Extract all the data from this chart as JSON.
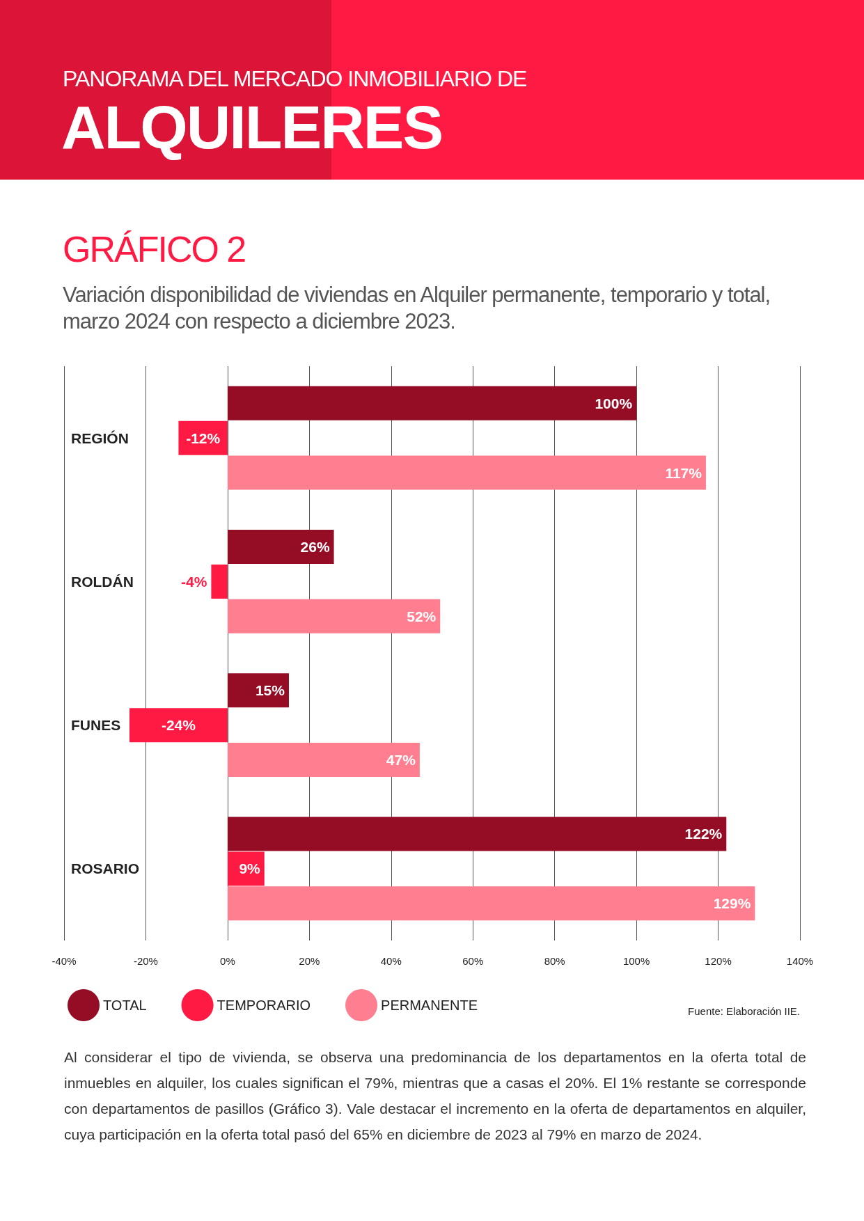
{
  "chart_data": {
    "type": "bar",
    "orientation": "horizontal",
    "title": "PANORAMA DEL MERCADO INMOBILIARIO DE\nALQUILERES",
    "subtitle": "GRÁFICO 2\nVariación disponibilidad de viviendas en Alquiler permanente, temporario y total, marzo 2024 con respecto a diciembre 2023.",
    "categories": [
      "REGIÓN",
      "ROLDÁN",
      "FUNES",
      "ROSARIO"
    ],
    "series": [
      {
        "name": "TOTAL",
        "color": "#950d25",
        "values": [
          100,
          26,
          15,
          122
        ],
        "value_labels": [
          "100%",
          "26%",
          "15%",
          "122%"
        ]
      },
      {
        "name": "TEMPORARIO",
        "color": "#ff1a44",
        "values": [
          -12,
          -4,
          -24,
          9
        ],
        "value_labels": [
          "-12%",
          "-4%",
          "-24%",
          "9%"
        ]
      },
      {
        "name": "PERMANENTE",
        "color": "#ff7f90",
        "values": [
          117,
          52,
          47,
          129
        ],
        "value_labels": [
          "117%",
          "52%",
          "47%",
          "129%"
        ]
      }
    ],
    "xlim": [
      -40,
      140
    ],
    "xticks": [
      {
        "value": -40,
        "label": "-40%"
      },
      {
        "value": -20,
        "label": "-20%"
      },
      {
        "value": 0,
        "label": "0%"
      },
      {
        "value": 20,
        "label": "20%"
      },
      {
        "value": 40,
        "label": "40%"
      },
      {
        "value": 60,
        "label": "60%"
      },
      {
        "value": 80,
        "label": "80%"
      },
      {
        "value": 100,
        "label": "100%"
      },
      {
        "value": 120,
        "label": "120%"
      },
      {
        "value": 140,
        "label": "140%"
      }
    ],
    "grid": "x",
    "legend": "bottom left",
    "annotations": [
      "Fuente: Elaboración IIE.",
      "Al considerar el tipo de vivienda, se observa una predominancia de los departamentos en la oferta total de inmuebles en alquiler, los cuales significan el 79%, mientras que a casas el 20%. El 1% restante se corresponde con departamentos de pasillos (Gráfico 3). Vale destacar el incremento en la oferta de departamentos en alquiler, cuya participación en la oferta total pasó del 65% en diciembre de 2023 al 79% en marzo de 2024."
    ]
  }
}
